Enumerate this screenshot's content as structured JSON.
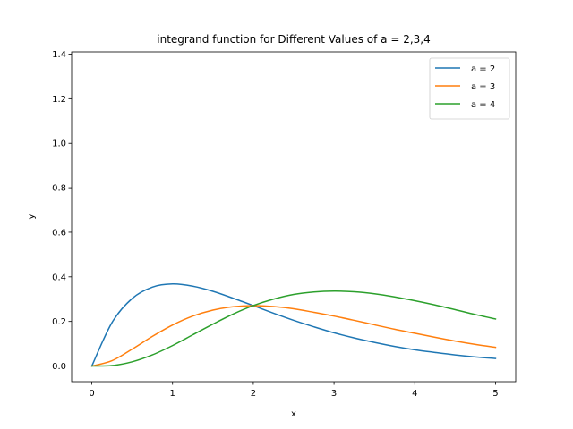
{
  "chart_data": {
    "type": "line",
    "title": "integrand function for Different Values of a = 2,3,4",
    "xlabel": "x",
    "ylabel": "y",
    "xlim": [
      -0.25,
      5.25
    ],
    "ylim": [
      -0.07,
      1.41
    ],
    "x_ticks": [
      0,
      1,
      2,
      3,
      4,
      5
    ],
    "y_ticks": [
      0.0,
      0.2,
      0.4,
      0.6,
      0.8,
      1.0,
      1.2,
      1.4
    ],
    "x_tick_labels": [
      "0",
      "1",
      "2",
      "3",
      "4",
      "5"
    ],
    "y_tick_labels": [
      "0.0",
      "0.2",
      "0.4",
      "0.6",
      "0.8",
      "1.0",
      "1.2",
      "1.4"
    ],
    "grid": false,
    "legend_position": "top-right",
    "x": [
      0,
      0.25,
      0.5,
      0.75,
      1,
      1.25,
      1.5,
      1.75,
      2,
      2.25,
      2.5,
      2.75,
      3,
      3.25,
      3.5,
      3.75,
      4,
      4.25,
      4.5,
      4.75,
      5
    ],
    "series": [
      {
        "name": "a = 2",
        "color": "#1f77b4",
        "values": [
          0,
          0.195,
          0.303,
          0.354,
          0.368,
          0.358,
          0.335,
          0.304,
          0.271,
          0.237,
          0.205,
          0.176,
          0.149,
          0.126,
          0.106,
          0.088,
          0.073,
          0.061,
          0.05,
          0.041,
          0.034
        ]
      },
      {
        "name": "a = 3",
        "color": "#ff7f0e",
        "values": [
          0,
          0.024,
          0.076,
          0.133,
          0.184,
          0.224,
          0.251,
          0.266,
          0.271,
          0.267,
          0.257,
          0.241,
          0.224,
          0.205,
          0.185,
          0.165,
          0.147,
          0.129,
          0.112,
          0.097,
          0.084
        ]
      },
      {
        "name": "a = 4",
        "color": "#2ca02c",
        "values": [
          0,
          0.002,
          0.019,
          0.05,
          0.092,
          0.14,
          0.188,
          0.233,
          0.271,
          0.3,
          0.321,
          0.332,
          0.336,
          0.333,
          0.324,
          0.31,
          0.293,
          0.274,
          0.253,
          0.231,
          0.211
        ]
      }
    ]
  }
}
